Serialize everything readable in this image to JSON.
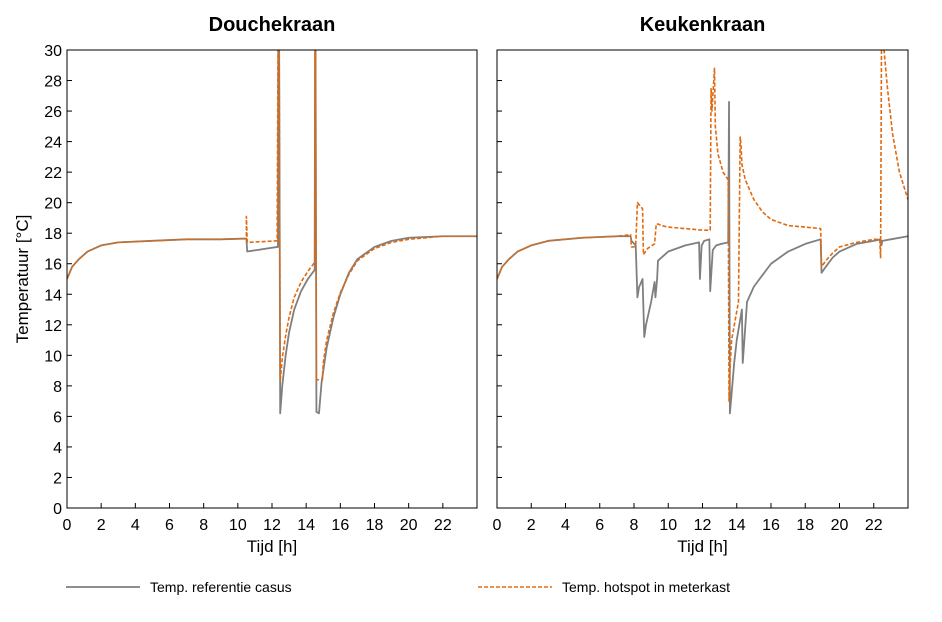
{
  "legend": {
    "reference": "Temp. referentie casus",
    "hotspot": "Temp. hotspot in meterkast"
  },
  "colors": {
    "reference": "#7f7f7f",
    "hotspot": "#e06a10"
  },
  "chart_data": [
    {
      "type": "line",
      "title": "Douchekraan",
      "xlabel": "Tijd [h]",
      "ylabel": "Temperatuur [°C]",
      "xlim": [
        0,
        24
      ],
      "ylim": [
        0,
        30
      ],
      "xticks": [
        0,
        2,
        4,
        6,
        8,
        10,
        12,
        14,
        16,
        18,
        20,
        22
      ],
      "yticks": [
        0,
        2,
        4,
        6,
        8,
        10,
        12,
        14,
        16,
        18,
        20,
        22,
        24,
        26,
        28,
        30
      ],
      "grid": false,
      "series": [
        {
          "name": "Temp. referentie casus",
          "style": "solid",
          "x": [
            0,
            0.3,
            0.7,
            1.2,
            2,
            3,
            5,
            7,
            9,
            10.5,
            10.55,
            12.3,
            12.35,
            12.37,
            12.42,
            12.48,
            12.6,
            12.8,
            13,
            13.3,
            13.7,
            14.1,
            14.5,
            14.52,
            14.55,
            14.6,
            14.75,
            14.9,
            15.2,
            15.6,
            16,
            16.5,
            17,
            18,
            19,
            20,
            21,
            22,
            23,
            24
          ],
          "y": [
            15.0,
            15.8,
            16.3,
            16.8,
            17.2,
            17.4,
            17.5,
            17.6,
            17.6,
            17.65,
            16.8,
            17.1,
            17.1,
            30,
            30,
            6.2,
            8.0,
            10.0,
            11.5,
            13.0,
            14.2,
            15.0,
            15.6,
            30,
            30,
            6.3,
            6.2,
            8.2,
            10.5,
            12.5,
            14.0,
            15.4,
            16.3,
            17.1,
            17.5,
            17.7,
            17.75,
            17.8,
            17.8,
            17.8
          ]
        },
        {
          "name": "Temp. hotspot in meterkast",
          "style": "dashed",
          "x": [
            0,
            0.3,
            0.7,
            1.2,
            2,
            3,
            5,
            7,
            9,
            10.5,
            10.5,
            10.55,
            10.6,
            12.3,
            12.35,
            12.42,
            12.48,
            12.6,
            12.8,
            13,
            13.3,
            13.7,
            14.1,
            14.5,
            14.52,
            14.55,
            14.6,
            14.95,
            15.0,
            15.2,
            15.6,
            16,
            16.5,
            17,
            18,
            19,
            20,
            21,
            22,
            23,
            24
          ],
          "y": [
            15.0,
            15.8,
            16.3,
            16.8,
            17.2,
            17.4,
            17.5,
            17.6,
            17.6,
            17.65,
            19.1,
            17.4,
            17.4,
            17.5,
            30,
            30,
            8.3,
            9.8,
            11.3,
            12.5,
            13.8,
            14.8,
            15.5,
            16.1,
            30,
            30,
            8.4,
            8.4,
            9.5,
            11.0,
            12.8,
            14.1,
            15.3,
            16.2,
            17.0,
            17.4,
            17.6,
            17.7,
            17.8,
            17.8,
            17.8
          ]
        }
      ]
    },
    {
      "type": "line",
      "title": "Keukenkraan",
      "xlabel": "Tijd [h]",
      "ylabel": "",
      "xlim": [
        0,
        24
      ],
      "ylim": [
        0,
        30
      ],
      "xticks": [
        0,
        2,
        4,
        6,
        8,
        10,
        12,
        14,
        16,
        18,
        20,
        22
      ],
      "yticks": [
        0,
        2,
        4,
        6,
        8,
        10,
        12,
        14,
        16,
        18,
        20,
        22,
        24,
        26,
        28,
        30
      ],
      "grid": false,
      "series": [
        {
          "name": "Temp. referentie casus",
          "style": "solid",
          "x": [
            0,
            0.3,
            0.7,
            1.2,
            2,
            3,
            5,
            7,
            7.8,
            7.85,
            8.1,
            8.2,
            8.3,
            8.35,
            8.5,
            8.6,
            8.7,
            9.0,
            9.2,
            9.25,
            9.35,
            9.4,
            10,
            11,
            11.8,
            11.85,
            11.95,
            12.1,
            12.4,
            12.45,
            12.6,
            12.8,
            13.1,
            13.5,
            13.55,
            13.6,
            13.7,
            13.85,
            14.0,
            14.3,
            14.35,
            14.6,
            15,
            16,
            17,
            18,
            18.9,
            18.95,
            19.2,
            19.6,
            20,
            21,
            22,
            22.4,
            22.45,
            22.5,
            23,
            24
          ],
          "y": [
            15.0,
            15.8,
            16.3,
            16.8,
            17.2,
            17.5,
            17.7,
            17.8,
            17.8,
            17.5,
            17.2,
            13.8,
            14.5,
            14.6,
            15.0,
            11.2,
            12.0,
            13.5,
            14.8,
            13.8,
            15.0,
            16.2,
            16.8,
            17.2,
            17.4,
            15.0,
            17.2,
            17.5,
            17.6,
            14.2,
            16.9,
            17.2,
            17.3,
            17.4,
            26.6,
            6.2,
            7.5,
            9.5,
            11.0,
            13.0,
            9.5,
            13.5,
            14.5,
            16.0,
            16.8,
            17.3,
            17.6,
            15.4,
            15.8,
            16.4,
            16.8,
            17.3,
            17.5,
            17.6,
            17.2,
            17.5,
            17.6,
            17.8
          ]
        },
        {
          "name": "Temp. hotspot in meterkast",
          "style": "dashed",
          "x": [
            0,
            0.3,
            0.7,
            1.2,
            2,
            3,
            5,
            7,
            7.8,
            7.85,
            8.0,
            8.1,
            8.2,
            8.5,
            8.55,
            8.8,
            9.2,
            9.3,
            9.4,
            9.6,
            10,
            11,
            12.0,
            12.45,
            12.5,
            12.55,
            12.7,
            12.75,
            12.9,
            13.2,
            13.5,
            13.55,
            13.6,
            13.7,
            14.1,
            14.2,
            14.25,
            14.3,
            14.5,
            15,
            15.5,
            16,
            17,
            18,
            18.9,
            18.95,
            19.2,
            19.6,
            20,
            21,
            22,
            22.35,
            22.4,
            22.45,
            22.6,
            22.8,
            23.1,
            23.5,
            24
          ],
          "y": [
            15.0,
            15.8,
            16.3,
            16.8,
            17.2,
            17.5,
            17.7,
            17.8,
            17.9,
            17.1,
            17.1,
            17.2,
            20.0,
            19.6,
            16.6,
            17.0,
            17.3,
            18.6,
            18.6,
            18.5,
            18.4,
            18.3,
            18.2,
            18.2,
            27.5,
            26.0,
            28.8,
            25.0,
            23.2,
            22.0,
            21.5,
            7.0,
            9.0,
            11.0,
            13.5,
            24.3,
            23.8,
            22.5,
            21.5,
            20.2,
            19.4,
            18.9,
            18.5,
            18.4,
            18.3,
            15.8,
            16.2,
            16.7,
            17.1,
            17.4,
            17.6,
            17.6,
            16.4,
            30,
            30,
            27.5,
            24.5,
            22.0,
            20.2
          ]
        }
      ]
    }
  ]
}
